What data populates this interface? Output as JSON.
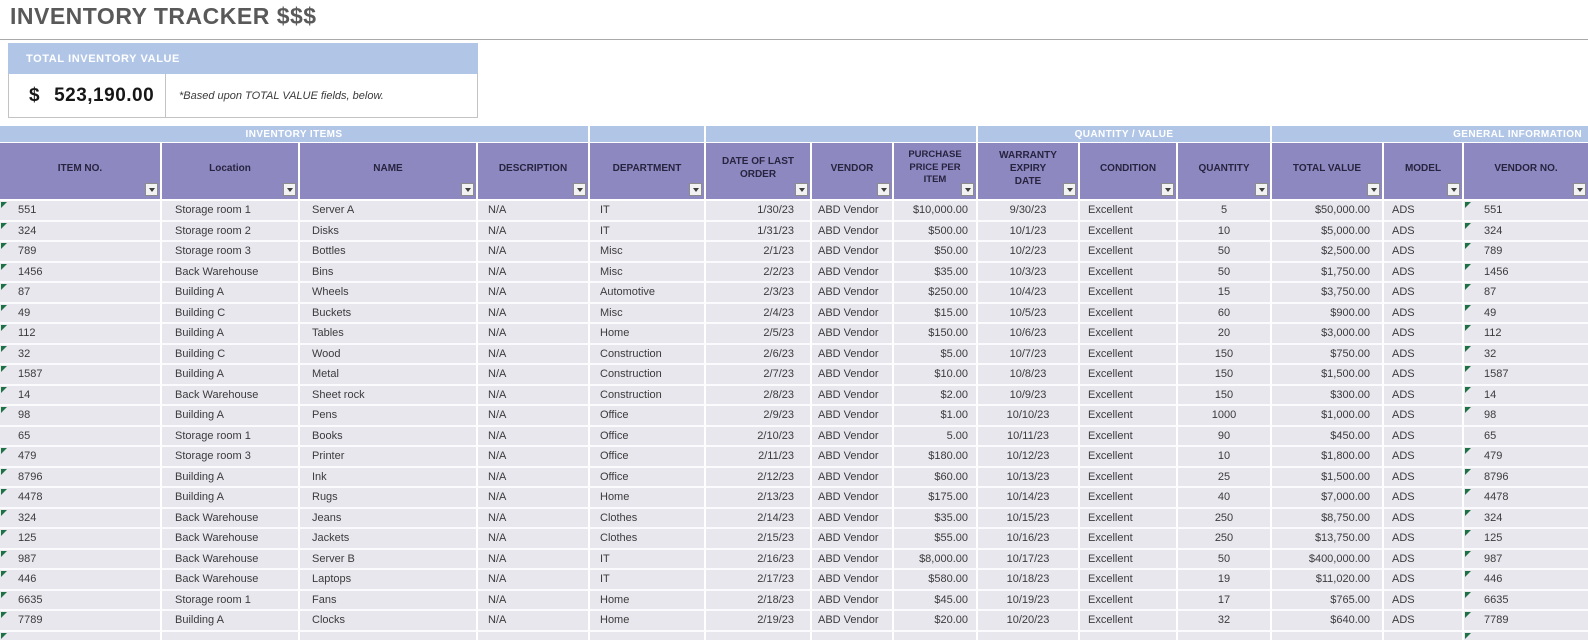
{
  "title": "INVENTORY TRACKER $$$",
  "summary": {
    "header": "TOTAL INVENTORY VALUE",
    "currency_symbol": "$",
    "amount": "523,190.00",
    "note": "*Based upon TOTAL VALUE fields, below."
  },
  "colors": {
    "accent_blue": "#b1c6e7",
    "header_purple": "#8e88c1",
    "row_bg": "#e8e7ee",
    "title_gray": "#595959",
    "flag_green": "#1e7145"
  },
  "table": {
    "group_headers": [
      "INVENTORY ITEMS",
      "",
      "",
      "QUANTITY / VALUE",
      "GENERAL INFORMATION"
    ],
    "columns": [
      {
        "key": "item_no",
        "label": "ITEM NO."
      },
      {
        "key": "location",
        "label": "Location"
      },
      {
        "key": "name",
        "label": "NAME"
      },
      {
        "key": "description",
        "label": "DESCRIPTION"
      },
      {
        "key": "department",
        "label": "DEPARTMENT"
      },
      {
        "key": "date_of_last_order",
        "label": "DATE OF LAST ORDER"
      },
      {
        "key": "vendor",
        "label": "VENDOR"
      },
      {
        "key": "purchase_price_per_item",
        "label": "PURCHASE PRICE PER ITEM"
      },
      {
        "key": "warranty_expiry_date",
        "label": "WARRANTY EXPIRY DATE"
      },
      {
        "key": "condition",
        "label": "CONDITION"
      },
      {
        "key": "quantity",
        "label": "QUANTITY"
      },
      {
        "key": "total_value",
        "label": "TOTAL VALUE"
      },
      {
        "key": "model",
        "label": "MODEL"
      },
      {
        "key": "vendor_no",
        "label": "VENDOR NO."
      }
    ],
    "rows": [
      {
        "flagged": true,
        "cells": [
          "551",
          "Storage room 1",
          "Server A",
          "N/A",
          "IT",
          "1/30/23",
          "ABD Vendor",
          "$10,000.00",
          "9/30/23",
          "Excellent",
          "5",
          "$50,000.00",
          "ADS",
          "551"
        ]
      },
      {
        "flagged": true,
        "cells": [
          "324",
          "Storage room 2",
          "Disks",
          "N/A",
          "IT",
          "1/31/23",
          "ABD Vendor",
          "$500.00",
          "10/1/23",
          "Excellent",
          "10",
          "$5,000.00",
          "ADS",
          "324"
        ]
      },
      {
        "flagged": true,
        "cells": [
          "789",
          "Storage room 3",
          "Bottles",
          "N/A",
          "Misc",
          "2/1/23",
          "ABD Vendor",
          "$50.00",
          "10/2/23",
          "Excellent",
          "50",
          "$2,500.00",
          "ADS",
          "789"
        ]
      },
      {
        "flagged": true,
        "cells": [
          "1456",
          "Back Warehouse",
          "Bins",
          "N/A",
          "Misc",
          "2/2/23",
          "ABD Vendor",
          "$35.00",
          "10/3/23",
          "Excellent",
          "50",
          "$1,750.00",
          "ADS",
          "1456"
        ]
      },
      {
        "flagged": true,
        "cells": [
          "87",
          "Building A",
          "Wheels",
          "N/A",
          "Automotive",
          "2/3/23",
          "ABD Vendor",
          "$250.00",
          "10/4/23",
          "Excellent",
          "15",
          "$3,750.00",
          "ADS",
          "87"
        ]
      },
      {
        "flagged": true,
        "cells": [
          "49",
          "Building C",
          "Buckets",
          "N/A",
          "Misc",
          "2/4/23",
          "ABD Vendor",
          "$15.00",
          "10/5/23",
          "Excellent",
          "60",
          "$900.00",
          "ADS",
          "49"
        ]
      },
      {
        "flagged": true,
        "cells": [
          "112",
          "Building A",
          "Tables",
          "N/A",
          "Home",
          "2/5/23",
          "ABD Vendor",
          "$150.00",
          "10/6/23",
          "Excellent",
          "20",
          "$3,000.00",
          "ADS",
          "112"
        ]
      },
      {
        "flagged": true,
        "cells": [
          "32",
          "Building C",
          "Wood",
          "N/A",
          "Construction",
          "2/6/23",
          "ABD Vendor",
          "$5.00",
          "10/7/23",
          "Excellent",
          "150",
          "$750.00",
          "ADS",
          "32"
        ]
      },
      {
        "flagged": true,
        "cells": [
          "1587",
          "Building A",
          "Metal",
          "N/A",
          "Construction",
          "2/7/23",
          "ABD Vendor",
          "$10.00",
          "10/8/23",
          "Excellent",
          "150",
          "$1,500.00",
          "ADS",
          "1587"
        ]
      },
      {
        "flagged": true,
        "cells": [
          "14",
          "Back Warehouse",
          "Sheet rock",
          "N/A",
          "Construction",
          "2/8/23",
          "ABD Vendor",
          "$2.00",
          "10/9/23",
          "Excellent",
          "150",
          "$300.00",
          "ADS",
          "14"
        ]
      },
      {
        "flagged": true,
        "cells": [
          "98",
          "Building A",
          "Pens",
          "N/A",
          "Office",
          "2/9/23",
          "ABD Vendor",
          "$1.00",
          "10/10/23",
          "Excellent",
          "1000",
          "$1,000.00",
          "ADS",
          "98"
        ]
      },
      {
        "flagged": false,
        "cells": [
          "65",
          "Storage room 1",
          "Books",
          "N/A",
          "Office",
          "2/10/23",
          "ABD Vendor",
          "5.00",
          "10/11/23",
          "Excellent",
          "90",
          "$450.00",
          "ADS",
          "65"
        ]
      },
      {
        "flagged": true,
        "cells": [
          "479",
          "Storage room 3",
          "Printer",
          "N/A",
          "Office",
          "2/11/23",
          "ABD Vendor",
          "$180.00",
          "10/12/23",
          "Excellent",
          "10",
          "$1,800.00",
          "ADS",
          "479"
        ]
      },
      {
        "flagged": true,
        "cells": [
          "8796",
          "Building A",
          "Ink",
          "N/A",
          "Office",
          "2/12/23",
          "ABD Vendor",
          "$60.00",
          "10/13/23",
          "Excellent",
          "25",
          "$1,500.00",
          "ADS",
          "8796"
        ]
      },
      {
        "flagged": true,
        "cells": [
          "4478",
          "Building A",
          "Rugs",
          "N/A",
          "Home",
          "2/13/23",
          "ABD Vendor",
          "$175.00",
          "10/14/23",
          "Excellent",
          "40",
          "$7,000.00",
          "ADS",
          "4478"
        ]
      },
      {
        "flagged": true,
        "cells": [
          "324",
          "Back Warehouse",
          "Jeans",
          "N/A",
          "Clothes",
          "2/14/23",
          "ABD Vendor",
          "$35.00",
          "10/15/23",
          "Excellent",
          "250",
          "$8,750.00",
          "ADS",
          "324"
        ]
      },
      {
        "flagged": true,
        "cells": [
          "125",
          "Back Warehouse",
          "Jackets",
          "N/A",
          "Clothes",
          "2/15/23",
          "ABD Vendor",
          "$55.00",
          "10/16/23",
          "Excellent",
          "250",
          "$13,750.00",
          "ADS",
          "125"
        ]
      },
      {
        "flagged": true,
        "cells": [
          "987",
          "Back Warehouse",
          "Server B",
          "N/A",
          "IT",
          "2/16/23",
          "ABD Vendor",
          "$8,000.00",
          "10/17/23",
          "Excellent",
          "50",
          "$400,000.00",
          "ADS",
          "987"
        ]
      },
      {
        "flagged": true,
        "cells": [
          "446",
          "Back Warehouse",
          "Laptops",
          "N/A",
          "IT",
          "2/17/23",
          "ABD Vendor",
          "$580.00",
          "10/18/23",
          "Excellent",
          "19",
          "$11,020.00",
          "ADS",
          "446"
        ]
      },
      {
        "flagged": true,
        "cells": [
          "6635",
          "Storage room 1",
          "Fans",
          "N/A",
          "Home",
          "2/18/23",
          "ABD Vendor",
          "$45.00",
          "10/19/23",
          "Excellent",
          "17",
          "$765.00",
          "ADS",
          "6635"
        ]
      },
      {
        "flagged": true,
        "cells": [
          "7789",
          "Building A",
          "Clocks",
          "N/A",
          "Home",
          "2/19/23",
          "ABD Vendor",
          "$20.00",
          "10/20/23",
          "Excellent",
          "32",
          "$640.00",
          "ADS",
          "7789"
        ]
      }
    ],
    "partial_row": {
      "flagged": true,
      "cells": [
        "",
        "",
        "",
        "",
        "",
        "",
        "",
        "",
        "",
        "",
        "",
        "",
        "",
        ""
      ]
    }
  }
}
